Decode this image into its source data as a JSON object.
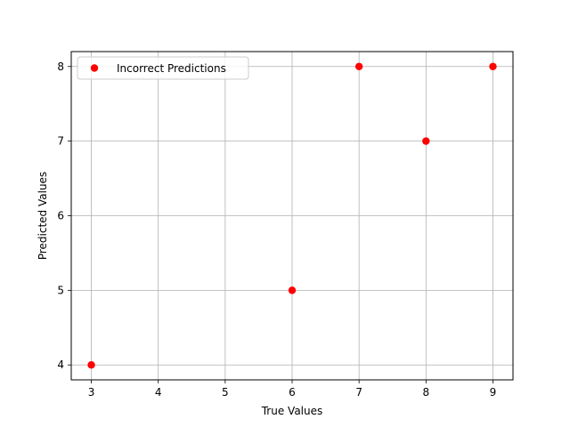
{
  "chart_data": {
    "type": "scatter",
    "title": "",
    "xlabel": "True Values",
    "ylabel": "Predicted Values",
    "xlim": [
      2.7,
      9.3
    ],
    "ylim": [
      3.8,
      8.2
    ],
    "xticks": [
      3,
      4,
      5,
      6,
      7,
      8,
      9
    ],
    "yticks": [
      4,
      5,
      6,
      7,
      8
    ],
    "grid": true,
    "legend_position": "upper-left",
    "series": [
      {
        "name": "Incorrect Predictions",
        "color": "#ff0000",
        "marker": "circle",
        "x": [
          3,
          6,
          7,
          8,
          9
        ],
        "y": [
          4,
          5,
          8,
          7,
          8
        ]
      }
    ]
  }
}
